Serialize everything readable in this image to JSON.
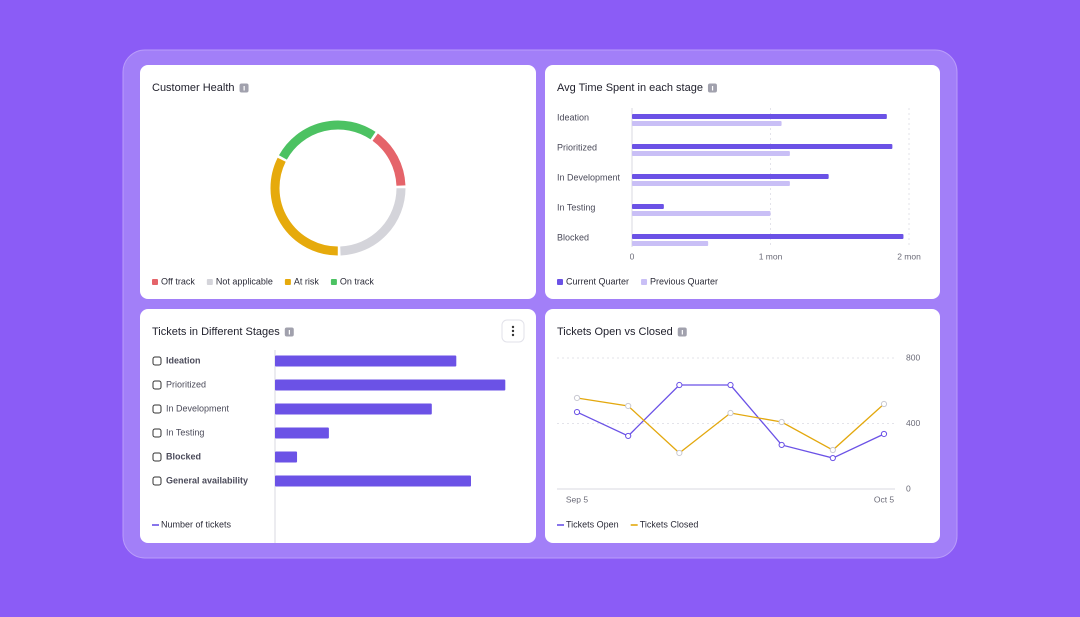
{
  "chart_data": [
    {
      "type": "donut",
      "title": "Customer Health",
      "categories": [
        "Off track",
        "Not applicable",
        "At risk",
        "On track"
      ],
      "values": [
        15,
        25,
        33,
        27
      ],
      "colors": [
        "#e5646a",
        "#d4d4da",
        "#e6aa0c",
        "#4cc262"
      ]
    },
    {
      "type": "bar",
      "orientation": "horizontal",
      "title": "Avg Time Spent in each stage",
      "categories": [
        "Ideation",
        "Prioritized",
        "In Development",
        "In Testing",
        "Blocked"
      ],
      "series": [
        {
          "name": "Current Quarter",
          "color": "#6b52e6",
          "values": [
            1.84,
            1.88,
            1.42,
            0.23,
            1.96
          ]
        },
        {
          "name": "Previous Quarter",
          "color": "#c9bff6",
          "values": [
            1.08,
            1.14,
            1.14,
            1.0,
            0.55
          ]
        }
      ],
      "xlim": [
        0,
        2
      ],
      "xticks": [
        0,
        {
          "value": 1,
          "label": "1 mon"
        },
        {
          "value": 2,
          "label": "2 mon"
        }
      ],
      "grid": true
    },
    {
      "type": "bar",
      "orientation": "horizontal",
      "title": "Tickets in Different Stages",
      "categories": [
        "Ideation",
        "Prioritized",
        "In Development",
        "In Testing",
        "Blocked",
        "General availability"
      ],
      "series": [
        {
          "name": "Number of tickets",
          "color": "#6b52e6",
          "values": [
            37,
            47,
            32,
            11,
            4.5,
            40
          ]
        }
      ],
      "xlim": [
        0,
        50
      ]
    },
    {
      "type": "line",
      "title": "Tickets Open vs Closed",
      "categories": [
        "Sep 5",
        null,
        null,
        null,
        null,
        null,
        "Oct 5"
      ],
      "series": [
        {
          "name": "Tickets Open",
          "color": "#6b52e6",
          "values": [
            470,
            324,
            635,
            635,
            269,
            189,
            336
          ]
        },
        {
          "name": "Tickets Closed",
          "color": "#e3a80e",
          "values": [
            556,
            507,
            220,
            464,
            409,
            238,
            519
          ]
        }
      ],
      "ylim": [
        0,
        800
      ],
      "yticks": [
        0,
        400,
        800
      ],
      "grid": true
    }
  ]
}
